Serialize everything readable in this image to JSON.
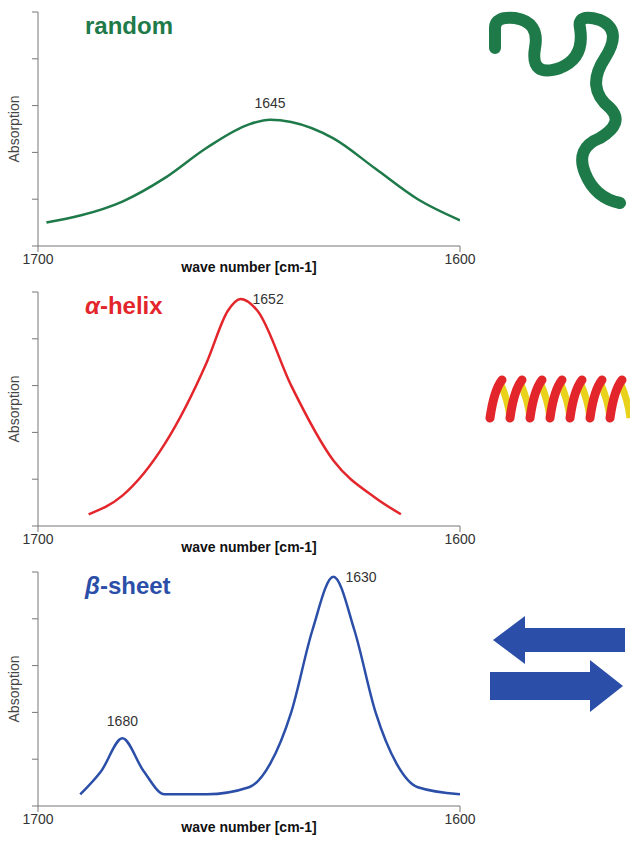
{
  "chart_data": [
    {
      "type": "line",
      "title": "random",
      "color": "#1f7a4a",
      "x_label": "wave number [cm-1]",
      "y_label": "Absorption",
      "x": [
        1698,
        1690,
        1680,
        1670,
        1660,
        1650,
        1645,
        1640,
        1630,
        1620,
        1610,
        1600
      ],
      "values": [
        1.0,
        1.3,
        1.9,
        2.9,
        4.2,
        5.2,
        5.4,
        5.3,
        4.6,
        3.3,
        2.0,
        1.1
      ],
      "xlim": [
        1700,
        1600
      ],
      "xticks": [
        1700,
        1600
      ],
      "ylim": [
        0,
        10
      ],
      "yticks": [
        0,
        2,
        4,
        6,
        8,
        10
      ],
      "tick_labels": "x",
      "annotations": [
        {
          "text": "1645",
          "x": 1645,
          "y": 5.4
        }
      ]
    },
    {
      "type": "line",
      "title": "α-helix",
      "color": "#e3262b",
      "x_label": "wave number [cm-1]",
      "y_label": "Absorption",
      "x": [
        1688,
        1680,
        1670,
        1660,
        1655,
        1652,
        1648,
        1640,
        1630,
        1620,
        1614
      ],
      "values": [
        0.5,
        1.3,
        3.5,
        7.0,
        9.2,
        9.7,
        9.2,
        6.0,
        2.8,
        1.2,
        0.5
      ],
      "xlim": [
        1700,
        1600
      ],
      "xticks": [
        1700,
        1600
      ],
      "ylim": [
        0,
        10
      ],
      "yticks": [
        0,
        2,
        4,
        6,
        8,
        10
      ],
      "tick_labels": "x",
      "annotations": [
        {
          "text": "1652",
          "x": 1652,
          "y": 9.7
        }
      ]
    },
    {
      "type": "line",
      "title": "β-sheet",
      "color": "#2b4fa8",
      "x_label": "wave number [cm-1]",
      "y_label": "Absorption",
      "x": [
        1690,
        1685,
        1680,
        1675,
        1670,
        1660,
        1650,
        1645,
        1640,
        1635,
        1630,
        1625,
        1620,
        1615,
        1610,
        1600
      ],
      "values": [
        0.5,
        1.5,
        2.9,
        1.5,
        0.5,
        0.5,
        0.8,
        1.8,
        4.0,
        7.5,
        9.8,
        7.5,
        4.0,
        1.8,
        0.8,
        0.5
      ],
      "xlim": [
        1700,
        1600
      ],
      "xticks": [
        1700,
        1600
      ],
      "ylim": [
        0,
        10
      ],
      "yticks": [
        0,
        2,
        4,
        6,
        8,
        10
      ],
      "tick_labels": "x",
      "annotations": [
        {
          "text": "1680",
          "x": 1680,
          "y": 2.9
        },
        {
          "text": "1630",
          "x": 1630,
          "y": 9.8
        }
      ]
    }
  ]
}
